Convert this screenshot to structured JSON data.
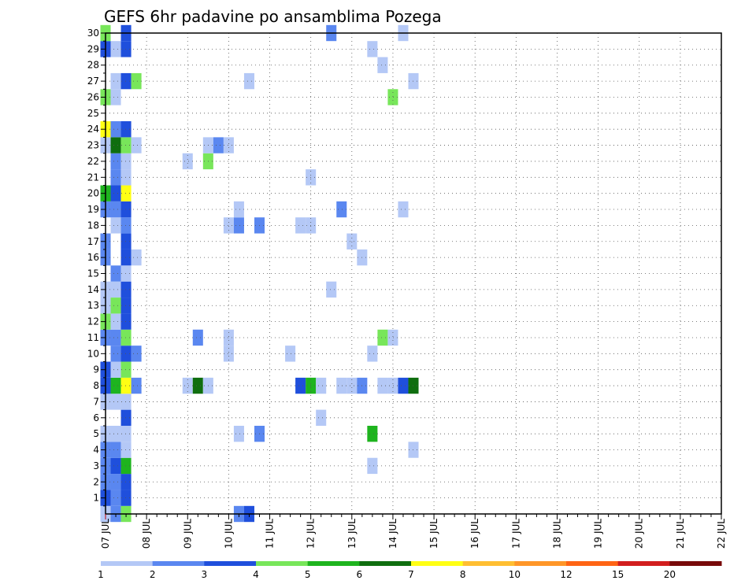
{
  "chart_data": {
    "type": "heatmap",
    "title": "GEFS 6hr padavine po ansamblima Pozega",
    "x_labels": [
      "07 JUL",
      "08 JUL",
      "09 JUL",
      "10 JUL",
      "11 JUL",
      "12 JUL",
      "13 JUL",
      "14 JUL",
      "15 JUL",
      "16 JUL",
      "17 JUL",
      "18 JUL",
      "19 JUL",
      "20 JUL",
      "21 JUL",
      "22 JUL"
    ],
    "x_range": [
      0,
      60
    ],
    "x_unit": "6-hour steps from 07 JUL 00UTC",
    "y_labels": [
      "1",
      "2",
      "3",
      "4",
      "5",
      "6",
      "7",
      "8",
      "9",
      "10",
      "11",
      "12",
      "13",
      "14",
      "15",
      "16",
      "17",
      "18",
      "19",
      "20",
      "21",
      "22",
      "23",
      "24",
      "25",
      "26",
      "27",
      "28",
      "29",
      "30"
    ],
    "y_range": [
      0,
      30
    ],
    "grid": true,
    "colorbar": {
      "labels": [
        "1",
        "2",
        "3",
        "4",
        "5",
        "6",
        "7",
        "8",
        "10",
        "12",
        "15",
        "20"
      ],
      "colors": [
        "#b4c8f6",
        "#5a87f0",
        "#1f4fdc",
        "#78e65a",
        "#1eb41e",
        "#0f6e0f",
        "#ffff14",
        "#ffbe32",
        "#ff9628",
        "#ff6414",
        "#d21e1e",
        "#780a0a"
      ]
    },
    "cells": [
      [
        0,
        0,
        1
      ],
      [
        1,
        0,
        2
      ],
      [
        2,
        0,
        4
      ],
      [
        13,
        0,
        2
      ],
      [
        14,
        0,
        3
      ],
      [
        0,
        1,
        3
      ],
      [
        1,
        1,
        2
      ],
      [
        2,
        1,
        3
      ],
      [
        0,
        2,
        2
      ],
      [
        1,
        2,
        2
      ],
      [
        2,
        2,
        3
      ],
      [
        0,
        3,
        2
      ],
      [
        1,
        3,
        3
      ],
      [
        2,
        3,
        5
      ],
      [
        26,
        3,
        1
      ],
      [
        0,
        4,
        2
      ],
      [
        1,
        4,
        2
      ],
      [
        2,
        4,
        1
      ],
      [
        30,
        4,
        1
      ],
      [
        0,
        5,
        1
      ],
      [
        1,
        5,
        1
      ],
      [
        2,
        5,
        1
      ],
      [
        13,
        5,
        1
      ],
      [
        15,
        5,
        2
      ],
      [
        26,
        5,
        5
      ],
      [
        2,
        6,
        3
      ],
      [
        21,
        6,
        1
      ],
      [
        0,
        7,
        1
      ],
      [
        1,
        7,
        1
      ],
      [
        2,
        7,
        1
      ],
      [
        0,
        8,
        3
      ],
      [
        1,
        8,
        5
      ],
      [
        2,
        8,
        7
      ],
      [
        3,
        8,
        2
      ],
      [
        8,
        8,
        1
      ],
      [
        9,
        8,
        6
      ],
      [
        10,
        8,
        1
      ],
      [
        19,
        8,
        3
      ],
      [
        20,
        8,
        5
      ],
      [
        21,
        8,
        1
      ],
      [
        23,
        8,
        1
      ],
      [
        24,
        8,
        1
      ],
      [
        25,
        8,
        2
      ],
      [
        27,
        8,
        1
      ],
      [
        28,
        8,
        1
      ],
      [
        29,
        8,
        3
      ],
      [
        30,
        8,
        6
      ],
      [
        0,
        9,
        3
      ],
      [
        1,
        9,
        1
      ],
      [
        2,
        9,
        4
      ],
      [
        1,
        10,
        2
      ],
      [
        2,
        10,
        3
      ],
      [
        3,
        10,
        2
      ],
      [
        12,
        10,
        1
      ],
      [
        18,
        10,
        1
      ],
      [
        26,
        10,
        1
      ],
      [
        0,
        11,
        2
      ],
      [
        1,
        11,
        2
      ],
      [
        2,
        11,
        4
      ],
      [
        9,
        11,
        2
      ],
      [
        12,
        11,
        1
      ],
      [
        27,
        11,
        4
      ],
      [
        28,
        11,
        1
      ],
      [
        0,
        12,
        4
      ],
      [
        1,
        12,
        1
      ],
      [
        2,
        12,
        3
      ],
      [
        0,
        13,
        1
      ],
      [
        1,
        13,
        4
      ],
      [
        2,
        13,
        3
      ],
      [
        0,
        14,
        1
      ],
      [
        1,
        14,
        1
      ],
      [
        2,
        14,
        3
      ],
      [
        22,
        14,
        1
      ],
      [
        1,
        15,
        2
      ],
      [
        2,
        15,
        1
      ],
      [
        0,
        16,
        2
      ],
      [
        2,
        16,
        3
      ],
      [
        3,
        16,
        1
      ],
      [
        25,
        16,
        1
      ],
      [
        0,
        17,
        2
      ],
      [
        2,
        17,
        3
      ],
      [
        24,
        17,
        1
      ],
      [
        1,
        18,
        1
      ],
      [
        2,
        18,
        2
      ],
      [
        12,
        18,
        1
      ],
      [
        13,
        18,
        2
      ],
      [
        15,
        18,
        2
      ],
      [
        19,
        18,
        1
      ],
      [
        20,
        18,
        1
      ],
      [
        0,
        19,
        2
      ],
      [
        1,
        19,
        2
      ],
      [
        2,
        19,
        3
      ],
      [
        13,
        19,
        1
      ],
      [
        23,
        19,
        2
      ],
      [
        29,
        19,
        1
      ],
      [
        0,
        20,
        5
      ],
      [
        1,
        20,
        3
      ],
      [
        2,
        20,
        7
      ],
      [
        1,
        21,
        2
      ],
      [
        2,
        21,
        1
      ],
      [
        20,
        21,
        1
      ],
      [
        1,
        22,
        2
      ],
      [
        2,
        22,
        1
      ],
      [
        8,
        22,
        1
      ],
      [
        10,
        22,
        4
      ],
      [
        0,
        23,
        1
      ],
      [
        1,
        23,
        6
      ],
      [
        2,
        23,
        4
      ],
      [
        3,
        23,
        1
      ],
      [
        10,
        23,
        1
      ],
      [
        11,
        23,
        2
      ],
      [
        12,
        23,
        1
      ],
      [
        0,
        24,
        7
      ],
      [
        1,
        24,
        2
      ],
      [
        2,
        24,
        3
      ],
      [
        0,
        26,
        4
      ],
      [
        1,
        26,
        1
      ],
      [
        28,
        26,
        4
      ],
      [
        1,
        27,
        1
      ],
      [
        2,
        27,
        3
      ],
      [
        3,
        27,
        4
      ],
      [
        14,
        27,
        1
      ],
      [
        30,
        27,
        1
      ],
      [
        27,
        28,
        1
      ],
      [
        0,
        29,
        3
      ],
      [
        1,
        29,
        1
      ],
      [
        2,
        29,
        3
      ],
      [
        26,
        29,
        1
      ],
      [
        0,
        30,
        4
      ],
      [
        2,
        30,
        3
      ],
      [
        22,
        30,
        2
      ],
      [
        29,
        30,
        1
      ]
    ]
  }
}
